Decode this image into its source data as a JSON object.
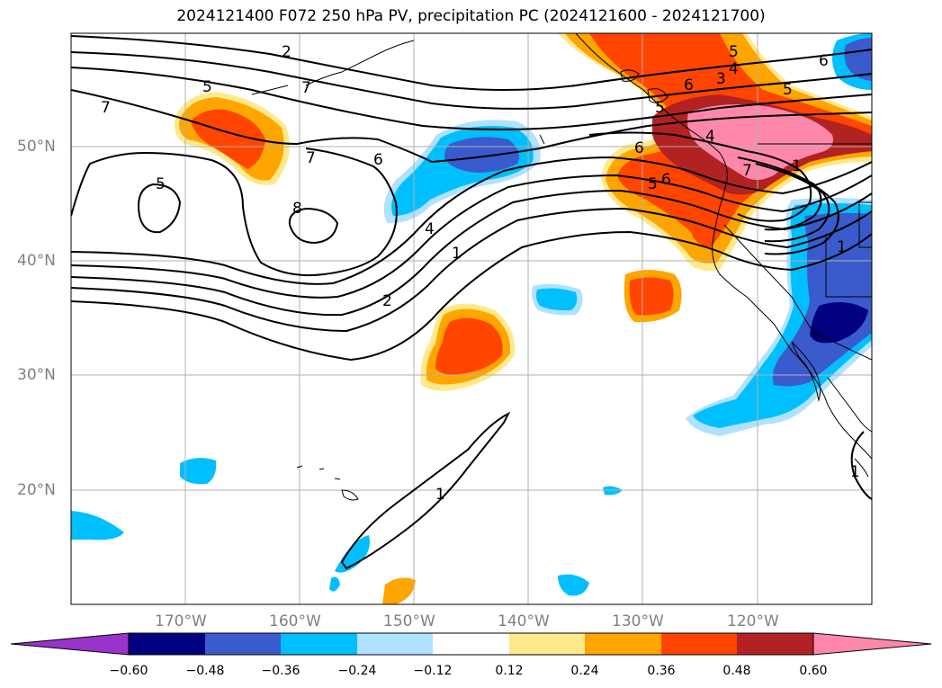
{
  "title": "2024121400 F072 250 hPa PV, precipitation PC (2024121600 - 2024121700)",
  "map": {
    "lat_labels": [
      "50°N",
      "40°N",
      "30°N",
      "20°N"
    ],
    "lon_labels": [
      "170°W",
      "160°W",
      "150°W",
      "140°W",
      "130°W",
      "120°W"
    ],
    "contour_labels": [
      "5",
      "5",
      "6",
      "7",
      "7",
      "6",
      "5",
      "4",
      "4",
      "1",
      "2",
      "8",
      "7",
      "6",
      "5",
      "3",
      "2",
      "5",
      "4",
      "6",
      "1",
      "1",
      "1",
      "1",
      "5",
      "6",
      "7"
    ]
  },
  "colorbar": {
    "ticks": [
      "−0.60",
      "−0.48",
      "−0.36",
      "−0.24",
      "−0.12",
      "0.12",
      "0.24",
      "0.36",
      "0.48",
      "0.60"
    ],
    "colors": [
      "#9933cc",
      "#000080",
      "#3a5bcc",
      "#00bfff",
      "#b0e2ff",
      "#ffffff",
      "#ffe98c",
      "#ffa500",
      "#ff4500",
      "#b22222",
      "#ff88aa"
    ]
  },
  "palette": {
    "neg_light": "#b0e2ff",
    "neg_1": "#00bfff",
    "neg_2": "#3a5bcc",
    "neg_3": "#000080",
    "pos_1": "#ffe98c",
    "pos_2": "#ffa500",
    "pos_3": "#ff4500",
    "pos_4": "#b22222",
    "pos_5": "#ff88aa"
  }
}
